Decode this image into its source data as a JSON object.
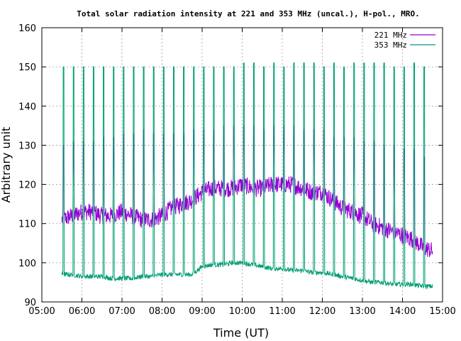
{
  "chart_data": {
    "type": "line",
    "title": "Total solar radiation intensity at 221 and 353 MHz (uncal.), H-pol., MRO.",
    "xlabel": "Time (UT)",
    "ylabel": "Arbitrary unit",
    "xlim": [
      "05:00",
      "15:00"
    ],
    "ylim": [
      90,
      160
    ],
    "x_ticks": [
      "05:00",
      "06:00",
      "07:00",
      "08:00",
      "09:00",
      "10:00",
      "11:00",
      "12:00",
      "13:00",
      "14:00",
      "15:00"
    ],
    "y_ticks": [
      "90",
      "100",
      "110",
      "120",
      "130",
      "140",
      "150",
      "160"
    ],
    "grid": true,
    "legend_position": "top-right",
    "series": [
      {
        "name": "221 MHz",
        "color": "#9400d3",
        "x": [
          "05:30",
          "05:45",
          "06:00",
          "06:15",
          "06:30",
          "06:45",
          "07:00",
          "07:15",
          "07:30",
          "07:45",
          "08:00",
          "08:15",
          "08:30",
          "08:45",
          "09:00",
          "09:15",
          "09:30",
          "09:45",
          "10:00",
          "10:15",
          "10:30",
          "10:45",
          "11:00",
          "11:15",
          "11:30",
          "11:45",
          "12:00",
          "12:15",
          "12:30",
          "12:45",
          "13:00",
          "13:15",
          "13:30",
          "13:45",
          "14:00",
          "14:15",
          "14:30",
          "14:45"
        ],
        "y": [
          111,
          112,
          113,
          113,
          112,
          112,
          113,
          112,
          111,
          111,
          112,
          114,
          115,
          116,
          118,
          119,
          119,
          119,
          120,
          119,
          119,
          120,
          120,
          120,
          119,
          118,
          118,
          116,
          114,
          113,
          112,
          110,
          109,
          108,
          107,
          106,
          104,
          103
        ]
      },
      {
        "name": "353 MHz",
        "color": "#009e73",
        "x": [
          "05:30",
          "05:45",
          "06:00",
          "06:15",
          "06:30",
          "06:45",
          "07:00",
          "07:15",
          "07:30",
          "07:45",
          "08:00",
          "08:15",
          "08:30",
          "08:45",
          "09:00",
          "09:15",
          "09:30",
          "09:45",
          "10:00",
          "10:15",
          "10:30",
          "10:45",
          "11:00",
          "11:15",
          "11:30",
          "11:45",
          "12:00",
          "12:15",
          "12:30",
          "12:45",
          "13:00",
          "13:15",
          "13:30",
          "13:45",
          "14:00",
          "14:15",
          "14:30",
          "14:45"
        ],
        "y": [
          97,
          97,
          96.5,
          96.5,
          96.5,
          96,
          96,
          96,
          96.5,
          96.5,
          97,
          97,
          97,
          97,
          99,
          99.5,
          99.5,
          100,
          100,
          99.5,
          99,
          98.5,
          98.5,
          98,
          98,
          97.5,
          97.5,
          97,
          96.5,
          96,
          95.5,
          95,
          95,
          94.5,
          94.5,
          94.5,
          94,
          94
        ]
      }
    ],
    "calibration_pulses": {
      "description_x": [
        "05:32",
        "05:47",
        "06:02",
        "06:17",
        "06:32",
        "06:47",
        "07:02",
        "07:17",
        "07:32",
        "07:47",
        "08:02",
        "08:17",
        "08:32",
        "08:47",
        "09:02",
        "09:17",
        "09:32",
        "09:47",
        "10:02",
        "10:17",
        "10:32",
        "10:47",
        "11:02",
        "11:17",
        "11:32",
        "11:47",
        "12:02",
        "12:17",
        "12:32",
        "12:47",
        "13:02",
        "13:17",
        "13:32",
        "13:47",
        "14:02",
        "14:17",
        "14:32",
        "14:47"
      ],
      "peak_353": [
        150,
        150,
        150,
        150,
        150,
        150,
        150,
        150,
        150,
        150,
        150,
        150,
        150,
        150,
        150,
        150,
        150,
        150,
        151,
        151,
        150,
        151,
        150,
        151,
        151,
        151,
        150,
        151,
        150,
        151,
        151,
        151,
        151,
        150,
        150,
        151,
        150,
        151
      ],
      "peak_221": [
        130,
        131,
        131,
        131,
        132,
        132,
        133,
        133,
        134,
        133,
        133,
        133,
        133,
        134,
        134,
        134,
        135,
        135,
        135,
        135,
        134,
        135,
        135,
        135,
        134,
        134,
        134,
        132,
        132,
        132,
        131,
        131,
        130,
        130,
        129,
        129,
        127,
        126
      ]
    }
  }
}
